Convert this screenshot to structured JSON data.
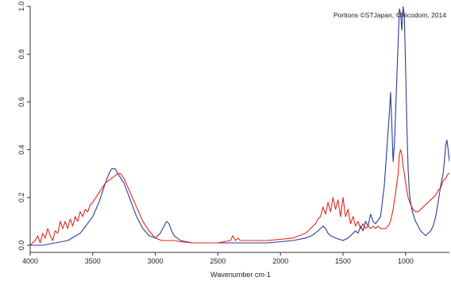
{
  "chart_data": {
    "type": "line",
    "title": "",
    "xlabel": "Wavenumber cm-1",
    "ylabel": "",
    "annotation": "Portions ©STJapan, ©Nicodom, 2014",
    "xlim": [
      4000,
      650
    ],
    "ylim": [
      -0.03,
      1.0
    ],
    "x_ticks": [
      4000,
      3500,
      3000,
      2500,
      2000,
      1500,
      1000
    ],
    "x_tick_labels": [
      "4000",
      "3500",
      "3000",
      "2500",
      "2000",
      "1500",
      "1000"
    ],
    "y_ticks": [
      0.0,
      0.2,
      0.4,
      0.6,
      0.8,
      1.0
    ],
    "y_tick_labels": [
      "0.0",
      "0.2",
      "0.4",
      "0.6",
      "0.8",
      "1.0"
    ],
    "grid": false,
    "series": [
      {
        "color": "#2b3a9b",
        "x": [
          4000,
          3900,
          3800,
          3700,
          3600,
          3500,
          3450,
          3400,
          3370,
          3350,
          3320,
          3300,
          3250,
          3200,
          3150,
          3100,
          3050,
          3000,
          2960,
          2930,
          2910,
          2890,
          2870,
          2850,
          2800,
          2700,
          2600,
          2500,
          2400,
          2300,
          2200,
          2100,
          2000,
          1900,
          1800,
          1750,
          1700,
          1660,
          1640,
          1620,
          1600,
          1560,
          1500,
          1460,
          1440,
          1400,
          1380,
          1360,
          1340,
          1320,
          1300,
          1280,
          1260,
          1240,
          1200,
          1170,
          1150,
          1130,
          1120,
          1110,
          1100,
          1090,
          1080,
          1070,
          1060,
          1050,
          1040,
          1030,
          1020,
          1010,
          1000,
          990,
          980,
          970,
          960,
          950,
          940,
          920,
          900,
          880,
          860,
          840,
          820,
          800,
          780,
          760,
          740,
          720,
          700,
          690,
          680,
          670,
          660,
          650
        ],
        "y": [
          0.0,
          0.0,
          0.01,
          0.02,
          0.05,
          0.12,
          0.18,
          0.26,
          0.3,
          0.32,
          0.32,
          0.3,
          0.26,
          0.19,
          0.12,
          0.07,
          0.04,
          0.03,
          0.05,
          0.08,
          0.1,
          0.09,
          0.06,
          0.04,
          0.02,
          0.01,
          0.01,
          0.01,
          0.01,
          0.01,
          0.01,
          0.01,
          0.015,
          0.02,
          0.03,
          0.04,
          0.06,
          0.08,
          0.07,
          0.05,
          0.04,
          0.03,
          0.02,
          0.03,
          0.04,
          0.06,
          0.05,
          0.08,
          0.06,
          0.1,
          0.08,
          0.13,
          0.1,
          0.09,
          0.12,
          0.25,
          0.4,
          0.55,
          0.64,
          0.5,
          0.35,
          0.42,
          0.55,
          0.7,
          0.85,
          0.99,
          0.97,
          0.9,
          1.0,
          0.95,
          0.75,
          0.5,
          0.32,
          0.22,
          0.18,
          0.15,
          0.13,
          0.1,
          0.08,
          0.06,
          0.05,
          0.04,
          0.05,
          0.06,
          0.08,
          0.12,
          0.18,
          0.25,
          0.3,
          0.35,
          0.42,
          0.44,
          0.4,
          0.35
        ]
      },
      {
        "color": "#e0291b",
        "x": [
          4000,
          3960,
          3940,
          3920,
          3900,
          3880,
          3860,
          3840,
          3820,
          3800,
          3780,
          3760,
          3740,
          3720,
          3700,
          3680,
          3660,
          3640,
          3620,
          3600,
          3580,
          3560,
          3540,
          3520,
          3500,
          3450,
          3400,
          3350,
          3300,
          3280,
          3250,
          3200,
          3150,
          3100,
          3050,
          3000,
          2950,
          2900,
          2850,
          2800,
          2700,
          2600,
          2500,
          2400,
          2380,
          2360,
          2340,
          2320,
          2300,
          2200,
          2100,
          2000,
          1900,
          1850,
          1800,
          1780,
          1760,
          1740,
          1720,
          1700,
          1680,
          1660,
          1640,
          1620,
          1600,
          1580,
          1560,
          1540,
          1520,
          1500,
          1480,
          1460,
          1440,
          1420,
          1400,
          1380,
          1360,
          1340,
          1320,
          1300,
          1280,
          1260,
          1240,
          1220,
          1200,
          1180,
          1160,
          1140,
          1120,
          1100,
          1080,
          1060,
          1050,
          1040,
          1030,
          1020,
          1010,
          1000,
          980,
          960,
          940,
          920,
          900,
          880,
          860,
          840,
          820,
          800,
          780,
          760,
          740,
          720,
          700,
          680,
          660,
          650
        ],
        "y": [
          0.0,
          0.02,
          0.04,
          0.01,
          0.05,
          0.03,
          0.07,
          0.04,
          0.02,
          0.06,
          0.05,
          0.1,
          0.07,
          0.1,
          0.07,
          0.11,
          0.08,
          0.12,
          0.1,
          0.14,
          0.12,
          0.15,
          0.14,
          0.17,
          0.18,
          0.22,
          0.26,
          0.28,
          0.3,
          0.3,
          0.28,
          0.22,
          0.16,
          0.1,
          0.06,
          0.03,
          0.02,
          0.02,
          0.02,
          0.015,
          0.01,
          0.01,
          0.01,
          0.02,
          0.04,
          0.02,
          0.03,
          0.02,
          0.02,
          0.02,
          0.02,
          0.025,
          0.03,
          0.04,
          0.05,
          0.06,
          0.07,
          0.08,
          0.09,
          0.11,
          0.12,
          0.16,
          0.13,
          0.18,
          0.14,
          0.2,
          0.15,
          0.19,
          0.12,
          0.2,
          0.12,
          0.15,
          0.09,
          0.12,
          0.08,
          0.1,
          0.07,
          0.09,
          0.07,
          0.08,
          0.07,
          0.08,
          0.07,
          0.08,
          0.07,
          0.07,
          0.07,
          0.08,
          0.1,
          0.15,
          0.22,
          0.3,
          0.38,
          0.4,
          0.38,
          0.33,
          0.3,
          0.26,
          0.2,
          0.17,
          0.15,
          0.14,
          0.14,
          0.15,
          0.16,
          0.17,
          0.18,
          0.19,
          0.2,
          0.21,
          0.23,
          0.24,
          0.27,
          0.28,
          0.3,
          0.3
        ]
      }
    ]
  }
}
